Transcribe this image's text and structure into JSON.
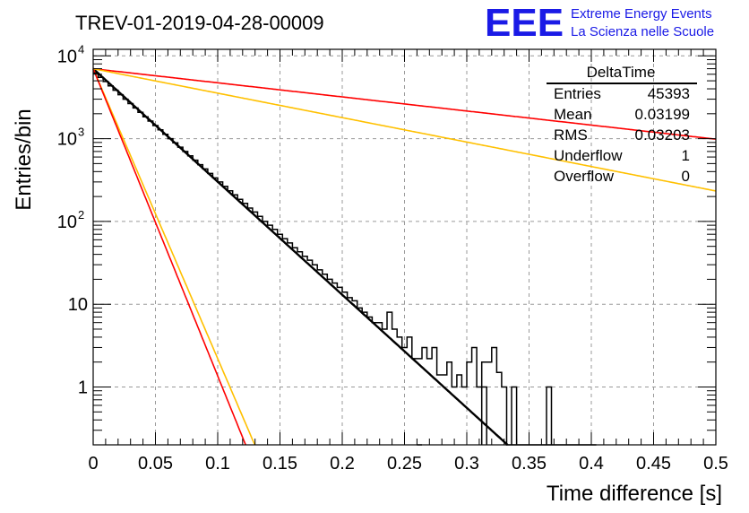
{
  "header": {
    "run_title": "TREV-01-2019-04-28-00009",
    "logo_letters": "EEE",
    "logo_line1": "Extreme Energy Events",
    "logo_line2": "La Scienza nelle Scuole"
  },
  "stats_box": {
    "title": "DeltaTime",
    "rows": [
      {
        "label": "Entries",
        "value": "45393"
      },
      {
        "label": "Mean",
        "value": "0.03199"
      },
      {
        "label": "RMS",
        "value": "0.03203"
      },
      {
        "label": "Underflow",
        "value": "1"
      },
      {
        "label": "Overflow",
        "value": "0"
      }
    ]
  },
  "chart_data": {
    "type": "line",
    "xlabel": "Time difference [s]",
    "ylabel": "Entries/bin",
    "xlim": [
      0,
      0.5
    ],
    "ylim": [
      0.2,
      12000
    ],
    "yscale": "log",
    "grid": true,
    "x_ticks": [
      "0",
      "0.05",
      "0.1",
      "0.15",
      "0.2",
      "0.25",
      "0.3",
      "0.35",
      "0.4",
      "0.45",
      "0.5"
    ],
    "y_ticks": [
      {
        "value": 1,
        "label": "1"
      },
      {
        "value": 10,
        "label": "10"
      },
      {
        "value": 100,
        "label": "10",
        "sup": "2"
      },
      {
        "value": 1000,
        "label": "10",
        "sup": "3"
      },
      {
        "value": 10000,
        "label": "10",
        "sup": "4"
      }
    ],
    "histogram": {
      "bin_width": 0.004,
      "x_min": 0,
      "counts": [
        6200,
        5500,
        4900,
        4350,
        3850,
        3400,
        3000,
        2650,
        2350,
        2080,
        1840,
        1630,
        1440,
        1280,
        1130,
        1000,
        890,
        790,
        700,
        620,
        550,
        485,
        430,
        380,
        335,
        300,
        265,
        235,
        210,
        185,
        165,
        145,
        130,
        115,
        100,
        90,
        80,
        70,
        62,
        55,
        48,
        43,
        38,
        34,
        30,
        26,
        23,
        20,
        18,
        16,
        14,
        12,
        11,
        9,
        8,
        7,
        6,
        6,
        5,
        8,
        5,
        4,
        3,
        4,
        2.2,
        2.2,
        3,
        2.2,
        3,
        1.4,
        1.4,
        2,
        1,
        1.4,
        1,
        2,
        3,
        1,
        2,
        2,
        3,
        1.5,
        1,
        0.2,
        0.2,
        0.2,
        0.2,
        0.2,
        0.2,
        0.2,
        0.2,
        0.2,
        0.2,
        0,
        0,
        0,
        0,
        0,
        0,
        0,
        0
      ],
      "extra_spikes": [
        {
          "x0": 0.26,
          "x1": 0.264,
          "y": 0.2
        },
        {
          "x0": 0.312,
          "x1": 0.316,
          "y": 1
        },
        {
          "x0": 0.336,
          "x1": 0.34,
          "y": 1
        },
        {
          "x0": 0.364,
          "x1": 0.368,
          "y": 1
        }
      ]
    },
    "series": [
      {
        "color": "#000000",
        "y0": 7000,
        "tau": 0.0318,
        "width": 2.4
      },
      {
        "color": "#ff0000",
        "y0": 7000,
        "tau": 0.255,
        "width": 1.6
      },
      {
        "color": "#ffc000",
        "y0": 7000,
        "tau": 0.0124,
        "width": 1.6
      },
      {
        "color": "#ff0000",
        "y0": 7000,
        "tau": 0.0117,
        "width": 1.6
      },
      {
        "color": "#ffc000",
        "y0": 7000,
        "tau": 0.147,
        "width": 1.6
      }
    ]
  }
}
